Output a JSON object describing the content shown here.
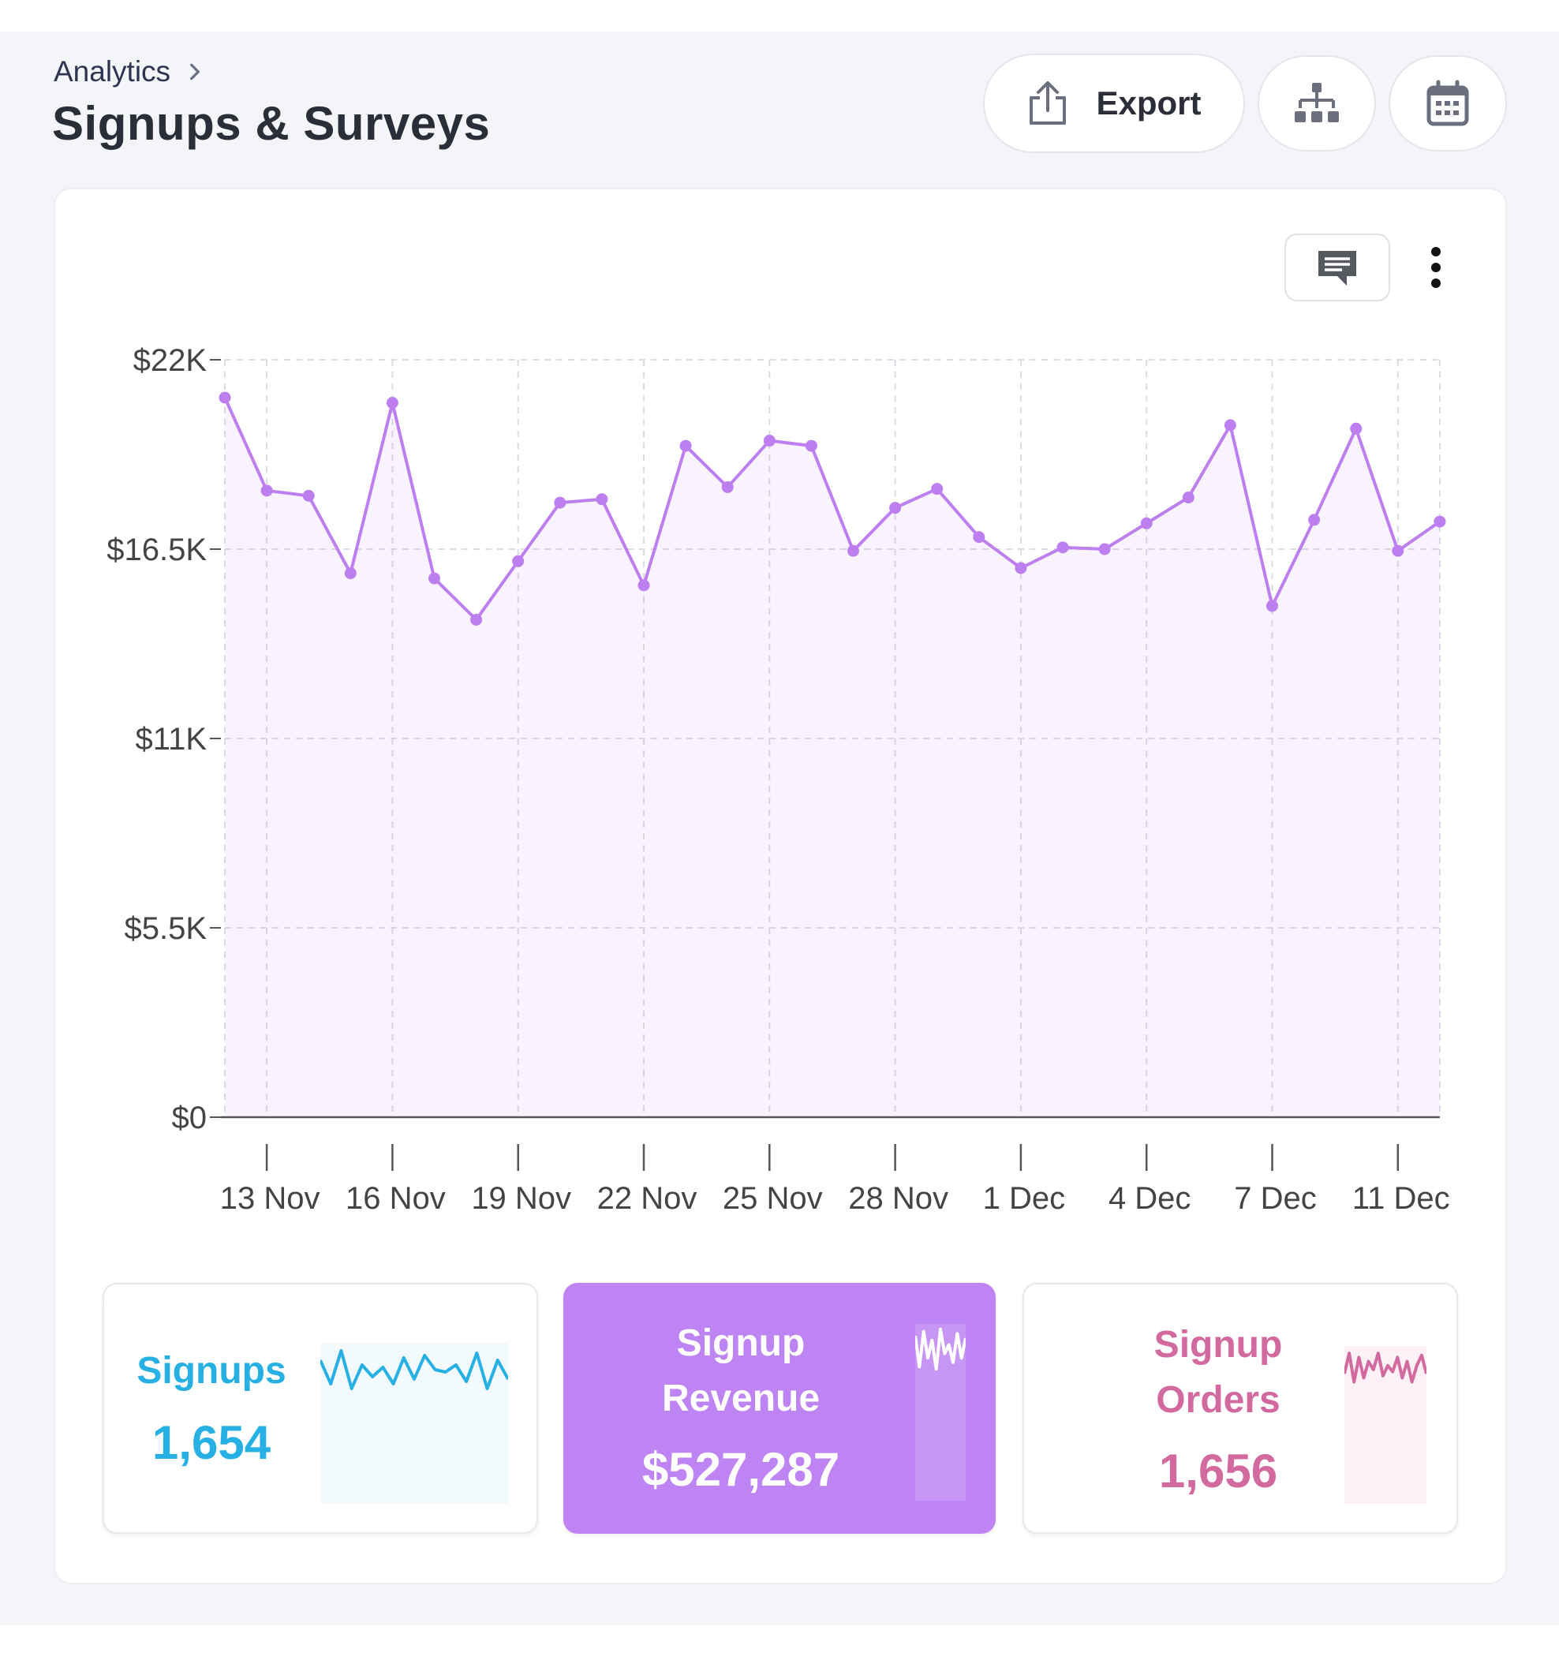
{
  "breadcrumb": {
    "parent": "Analytics"
  },
  "page": {
    "title": "Signups & Surveys"
  },
  "toolbar": {
    "export_label": "Export",
    "export_icon": "share-upload-icon",
    "hierarchy_icon": "hierarchy-icon",
    "calendar_icon": "calendar-icon"
  },
  "chart_toolbar": {
    "comment_icon": "comment-icon",
    "more_icon": "more-vertical-icon"
  },
  "chart_data": {
    "type": "area",
    "y_ticks": [
      "$22K",
      "$16.5K",
      "$11K",
      "$5.5K",
      "$0"
    ],
    "ylim": [
      0,
      22000
    ],
    "x_ticks": [
      {
        "i": 1,
        "label": "13 Nov"
      },
      {
        "i": 4,
        "label": "16 Nov"
      },
      {
        "i": 7,
        "label": "19 Nov"
      },
      {
        "i": 10,
        "label": "22 Nov"
      },
      {
        "i": 13,
        "label": "25 Nov"
      },
      {
        "i": 16,
        "label": "28 Nov"
      },
      {
        "i": 19,
        "label": "1 Dec"
      },
      {
        "i": 22,
        "label": "4 Dec"
      },
      {
        "i": 25,
        "label": "7 Dec"
      },
      {
        "i": 28,
        "label": "11 Dec"
      }
    ],
    "values": [
      20900,
      18200,
      18050,
      15800,
      20750,
      15650,
      14450,
      16150,
      17850,
      17950,
      15450,
      19500,
      18300,
      19650,
      19500,
      16450,
      17700,
      18250,
      16850,
      15950,
      16550,
      16500,
      17250,
      18000,
      20100,
      14850,
      17350,
      20000,
      16450,
      17300
    ],
    "grid": true,
    "color": "#bd7ef0"
  },
  "tiles": {
    "signups": {
      "label": "Signups",
      "value": "1,654",
      "color": "#26b0e3",
      "spark": [
        0.7,
        0.2,
        0.9,
        0.1,
        0.6,
        0.35,
        0.55,
        0.2,
        0.75,
        0.3,
        0.8,
        0.5,
        0.45,
        0.6,
        0.25,
        0.85,
        0.1,
        0.7,
        0.3
      ]
    },
    "revenue": {
      "label": "Signup Revenue",
      "value": "$527,287",
      "color": "#ffffff",
      "spark": [
        0.8,
        0.1,
        0.9,
        0.3,
        0.7,
        0.05,
        0.95,
        0.4,
        0.6,
        0.2,
        0.85,
        0.3,
        0.75
      ]
    },
    "orders": {
      "label": "Signup Orders",
      "value": "1,656",
      "color": "#d36a9f",
      "spark": [
        0.4,
        0.9,
        0.2,
        0.8,
        0.3,
        0.7,
        0.5,
        0.9,
        0.35,
        0.6,
        0.45,
        0.8,
        0.3,
        0.7,
        0.2,
        0.6,
        0.85,
        0.4
      ]
    }
  }
}
